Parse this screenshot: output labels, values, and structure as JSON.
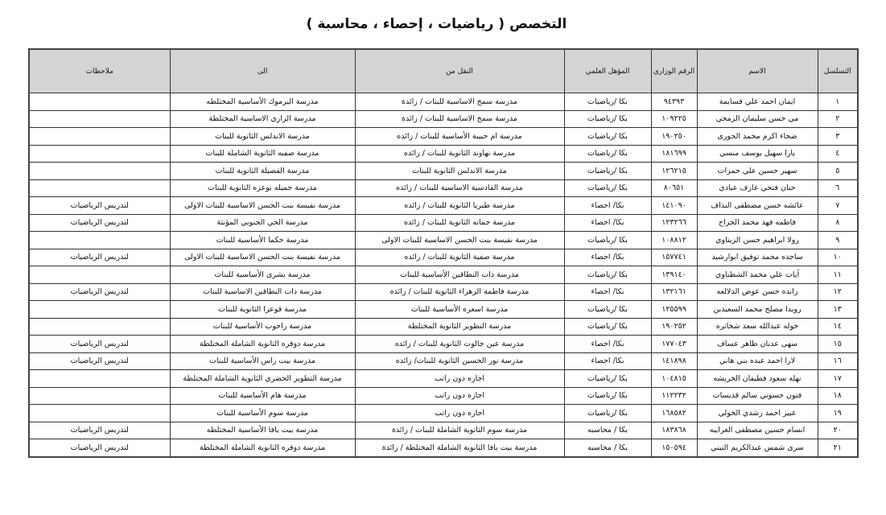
{
  "title": "التخصص ( رياضيات ، إحصاء ، محاسبة )",
  "table": {
    "headers": [
      "التسلسل",
      "الاسم",
      "الرقم الوزاري",
      "المؤهل العلمي",
      "النقل من",
      "الى",
      "ملاحظات"
    ],
    "rows": [
      [
        "١",
        "ايمان احمد علي قسايمة",
        "٩٤٣٩٣",
        "بكا /رياضيات",
        "مدرسة سمخ الاساسية للبنات / زائدة",
        "مدرسة اليرموك الأساسية المختلطه",
        ""
      ],
      [
        "٢",
        "مي حسن سليمان الرمحي",
        "١٠٩٢٢٥",
        "بكا /رياضيات",
        "مدرسة سمخ الاساسية للبنات / زائدة",
        "مدرسة الرازي الاساسية المختلطة",
        ""
      ],
      [
        "٣",
        "ضحاء اكرم محمد الحورى",
        "١٩٠٢٥٠",
        "بكا /رياضيات",
        "مدرسة ام حبيبة الأساسية للبنات / زائده",
        "مدرسة الاندلس الثانوية للبنات",
        ""
      ],
      [
        "٤",
        "يارا سهيل يوسف منسي",
        "١٨١٦٩٩",
        "بكا /رياضيات",
        "مدرسة نهاوند الثانوية للبنات / زائده",
        "مدرسة صفيه الثانوية الشاملة للبنات",
        ""
      ],
      [
        "٥",
        "سهير حسين علي حمزات",
        "١٢٦٢١٥",
        "بكا /رياضيات",
        "مدرسة الاندلس الثانوية للبنات",
        "مدرسة القصيلة الثانوية للبنات",
        ""
      ],
      [
        "٦",
        "حنان فتحي عارف عبادي",
        "٨٠٦٥١",
        "بكا /رياضيات",
        "مدرسة القادسية الاساسية للبنات / زائده",
        "مدرسة جميله بوعزه الثانوية للبنات",
        ""
      ],
      [
        "٧",
        "عائشه حسن مصطفى النداف",
        "١٤١٠٩٠",
        "بكا/ احصاء",
        "مدرسة طبريا الثانوية للبنات / زائده",
        "مدرسة نفيسة بنت الحسن الاساسية للبنات الاولى",
        "لتدريس الرياضيات"
      ],
      [
        "٨",
        "فاطمه فهد محمد الجراح",
        "١٢٣٢٦٦",
        "بكا/ احصاء",
        "مدرسة جمانه الثانوية للبنات / زائده",
        "مدرسة الحي الجنوبي المؤنثة",
        "لتدريس الرياضيات"
      ],
      [
        "٩",
        "رولا ابراهيم حسن الزيتاوي",
        "١٠٨٨١٢",
        "بكا /رياضيات",
        "مدرسة نفيسة بنت الحسن الاساسية للبنات الاولى",
        "مدرسة حكما الأساسية للبنات",
        ""
      ],
      [
        "١٠",
        "ساجده محمد توفيق ابوارشيد",
        "١٥٧٧٤١",
        "بكا/ احصاء",
        "مدرسة صفية الثانوية للبنات / زائده",
        "مدرسة نفيسة بنت الحسن الاساسية للبنات الاولى",
        "لتدريس الرياضيات"
      ],
      [
        "١١",
        "آيات علي محمد الشطناوي",
        "١٣٩١٤٠",
        "بكا /رياضيات",
        "مدرسة ذات النطاقين الأساسية للبنات",
        "مدرسة بشرى الأساسية للبنات",
        ""
      ],
      [
        "١٢",
        "رانده حسن عوض الدلالعه",
        "١٣٢١٦١",
        "بكا/ احصاء",
        "مدرسة فاطمة الزهراء الثانوية للبنات / زائده",
        "مدرسة ذات النطاقين الاساسية للبنات",
        "لتدريس الرياضيات"
      ],
      [
        "١٣",
        "رويدا مصلح محمد السعيدين",
        "١٢٥٥٩٩",
        "بكا /رياضيات",
        "مدرسة اسعره الأساسية للبنات",
        "مدرسة قوعرا الثانوية للبنات",
        ""
      ],
      [
        "١٤",
        "خوله عبدالله سعد شخاتره",
        "١٩٠٢٥٢",
        "بكا /رياضيات",
        "مدرسة التطوير الثانوية المختلطة",
        "مدرسة راحوب الأساسية للبنات",
        ""
      ],
      [
        "١٥",
        "سهى عدنان طاهر عساف",
        "١٧٧٠٤٣",
        "بكا/ احصاء",
        "مدرسة عين جالوت الثانوية للبنات / زائده",
        "مدرسة دوقره الثانوية الشاملة المختلطة",
        "لتدريس الرياضيات"
      ],
      [
        "١٦",
        "لارا احمد عبده بني هاني",
        "١٤١٨٩٨",
        "بكا/ احصاء",
        "مدرسة نور الحسين الثانوية للبنات/ زائده",
        "مدرسة بيت راس الأساسية للبنات",
        "لتدريس الرياضيات"
      ],
      [
        "١٧",
        "نهله سعود فطيفان الخريشه",
        "١٠٤٨١٥",
        "بكا /رياضيات",
        "اجازه دون راتب",
        "مدرسة التطوير الحضري الثانوية الشاملة المختلطة",
        ""
      ],
      [
        "١٨",
        "فتون حسوني سالم قديسات",
        "١١٢٢٣٢",
        "بكا /رياضيات",
        "اجازه دون راتب",
        "مدرسة هام الأساسية للبنات",
        ""
      ],
      [
        "١٩",
        "عبير احمد رشدي الخولي",
        "١٦٨٥٨٢",
        "بكا /رياضيات",
        "اجازه دون راتب",
        "مدرسة سوم الأساسية للبنات",
        ""
      ],
      [
        "٢٠",
        "انسام حسين مصطفى الغرايبه",
        "١٨٣٨٦٨",
        "بكا / محاسبه",
        "مدرسة سوم الثانوية الشاملة للبنات / زائدة",
        "مدرسة بيت يافا الأساسية المختلطه",
        "لتدريس الرياضيات"
      ],
      [
        "٢١",
        "سرى شمس عبدالكريم التيني",
        "١٥٠٥٩٤",
        "بكا / محاسبه",
        "مدرسة بيت يافا الثانوية الشاملة المختلطة / زائدة",
        "مدرسة دوقره الثانوية الشاملة المختلطة",
        "لتدريس الرياضيات"
      ]
    ]
  }
}
